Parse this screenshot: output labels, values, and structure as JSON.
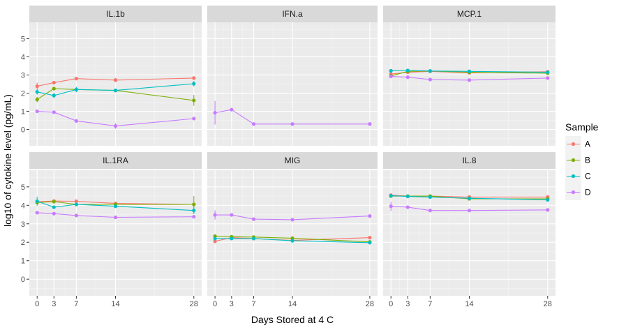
{
  "chart_data": {
    "type": "line",
    "xlabel": "Days Stored at 4 C",
    "ylabel": "log10 of cytokine level (pg/mL)",
    "x_ticks": [
      0,
      3,
      7,
      14,
      28
    ],
    "y_ticks": [
      0,
      1,
      2,
      3,
      4,
      5
    ],
    "xlim": [
      -1.4,
      29.4
    ],
    "ylim": [
      -0.9,
      5.9
    ],
    "grid": true,
    "legend": {
      "title": "Sample",
      "position": "right",
      "entries": [
        {
          "label": "A",
          "color": "#F8766D"
        },
        {
          "label": "B",
          "color": "#7CAE00"
        },
        {
          "label": "C",
          "color": "#00BFC4"
        },
        {
          "label": "D",
          "color": "#C77CFF"
        }
      ]
    },
    "panels": [
      {
        "title": "IL.1b",
        "series": [
          {
            "name": "A",
            "x": [
              0,
              3,
              7,
              14,
              28
            ],
            "y": [
              2.38,
              2.58,
              2.8,
              2.72,
              2.83
            ],
            "err": [
              0.2,
              0.05,
              0.05,
              0.12,
              0.05
            ]
          },
          {
            "name": "B",
            "x": [
              0,
              3,
              7,
              14,
              28
            ],
            "y": [
              1.65,
              2.25,
              2.2,
              2.15,
              1.6
            ],
            "err": [
              0.15,
              0.05,
              0.05,
              0.05,
              0.3
            ]
          },
          {
            "name": "C",
            "x": [
              0,
              3,
              7,
              14,
              28
            ],
            "y": [
              2.07,
              1.87,
              2.2,
              2.15,
              2.52
            ],
            "err": [
              0.15,
              0.15,
              0.15,
              0.05,
              0.15
            ]
          },
          {
            "name": "D",
            "x": [
              0,
              3,
              7,
              14,
              28
            ],
            "y": [
              1.0,
              0.95,
              0.47,
              0.19,
              0.6
            ],
            "err": [
              0.05,
              0.05,
              0.05,
              0.15,
              0.05
            ]
          }
        ]
      },
      {
        "title": "IFN.a",
        "series": [
          {
            "name": "D",
            "x": [
              0,
              3,
              7,
              14,
              28
            ],
            "y": [
              0.92,
              1.09,
              0.3,
              0.3,
              0.3
            ],
            "err": [
              0.65,
              0.05,
              0.0,
              0.0,
              0.0
            ]
          }
        ]
      },
      {
        "title": "MCP.1",
        "series": [
          {
            "name": "A",
            "x": [
              0,
              3,
              7,
              14,
              28
            ],
            "y": [
              3.05,
              3.15,
              3.2,
              3.12,
              3.18
            ],
            "err": [
              0.05,
              0.05,
              0.05,
              0.05,
              0.05
            ]
          },
          {
            "name": "B",
            "x": [
              0,
              3,
              7,
              14,
              28
            ],
            "y": [
              2.95,
              3.2,
              3.22,
              3.15,
              3.1
            ],
            "err": [
              0.05,
              0.05,
              0.05,
              0.05,
              0.05
            ]
          },
          {
            "name": "C",
            "x": [
              0,
              3,
              7,
              14,
              28
            ],
            "y": [
              3.23,
              3.25,
              3.22,
              3.2,
              3.15
            ],
            "err": [
              0.05,
              0.05,
              0.05,
              0.05,
              0.05
            ]
          },
          {
            "name": "D",
            "x": [
              0,
              3,
              7,
              14,
              28
            ],
            "y": [
              2.92,
              2.88,
              2.75,
              2.72,
              2.83
            ],
            "err": [
              0.1,
              0.05,
              0.05,
              0.05,
              0.05
            ]
          }
        ]
      },
      {
        "title": "IL.1RA",
        "series": [
          {
            "name": "A",
            "x": [
              0,
              3,
              7,
              14,
              28
            ],
            "y": [
              4.2,
              4.23,
              4.22,
              4.1,
              4.05
            ],
            "err": [
              0.1,
              0.05,
              0.05,
              0.05,
              0.05
            ]
          },
          {
            "name": "B",
            "x": [
              0,
              3,
              7,
              14,
              28
            ],
            "y": [
              4.15,
              4.2,
              4.05,
              4.05,
              4.05
            ],
            "err": [
              0.1,
              0.05,
              0.05,
              0.05,
              0.45
            ]
          },
          {
            "name": "C",
            "x": [
              0,
              3,
              7,
              14,
              28
            ],
            "y": [
              4.22,
              3.9,
              4.05,
              3.95,
              3.72
            ],
            "err": [
              0.25,
              0.05,
              0.05,
              0.05,
              0.2
            ]
          },
          {
            "name": "D",
            "x": [
              0,
              3,
              7,
              14,
              28
            ],
            "y": [
              3.6,
              3.55,
              3.45,
              3.35,
              3.38
            ],
            "err": [
              0.05,
              0.05,
              0.05,
              0.05,
              0.05
            ]
          }
        ]
      },
      {
        "title": "MIG",
        "series": [
          {
            "name": "A",
            "x": [
              0,
              3,
              7,
              14,
              28
            ],
            "y": [
              2.05,
              2.25,
              2.2,
              2.1,
              2.25
            ],
            "err": [
              0.05,
              0.05,
              0.05,
              0.05,
              0.05
            ]
          },
          {
            "name": "B",
            "x": [
              0,
              3,
              7,
              14,
              28
            ],
            "y": [
              2.33,
              2.3,
              2.28,
              2.22,
              2.02
            ],
            "err": [
              0.05,
              0.05,
              0.05,
              0.05,
              0.05
            ]
          },
          {
            "name": "C",
            "x": [
              0,
              3,
              7,
              14,
              28
            ],
            "y": [
              2.2,
              2.2,
              2.2,
              2.08,
              1.98
            ],
            "err": [
              0.05,
              0.05,
              0.05,
              0.05,
              0.05
            ]
          },
          {
            "name": "D",
            "x": [
              0,
              3,
              7,
              14,
              28
            ],
            "y": [
              3.48,
              3.48,
              3.25,
              3.22,
              3.42
            ],
            "err": [
              0.25,
              0.05,
              0.05,
              0.05,
              0.05
            ]
          }
        ]
      },
      {
        "title": "IL.8",
        "series": [
          {
            "name": "A",
            "x": [
              0,
              3,
              7,
              14,
              28
            ],
            "y": [
              4.55,
              4.5,
              4.5,
              4.45,
              4.45
            ],
            "err": [
              0.05,
              0.05,
              0.05,
              0.05,
              0.05
            ]
          },
          {
            "name": "B",
            "x": [
              0,
              3,
              7,
              14,
              28
            ],
            "y": [
              4.5,
              4.5,
              4.5,
              4.35,
              4.35
            ],
            "err": [
              0.05,
              0.05,
              0.05,
              0.05,
              0.05
            ]
          },
          {
            "name": "C",
            "x": [
              0,
              3,
              7,
              14,
              28
            ],
            "y": [
              4.52,
              4.48,
              4.45,
              4.38,
              4.3
            ],
            "err": [
              0.05,
              0.05,
              0.05,
              0.05,
              0.05
            ]
          },
          {
            "name": "D",
            "x": [
              0,
              3,
              7,
              14,
              28
            ],
            "y": [
              3.95,
              3.9,
              3.72,
              3.72,
              3.75
            ],
            "err": [
              0.25,
              0.05,
              0.05,
              0.05,
              0.05
            ]
          }
        ]
      }
    ]
  }
}
